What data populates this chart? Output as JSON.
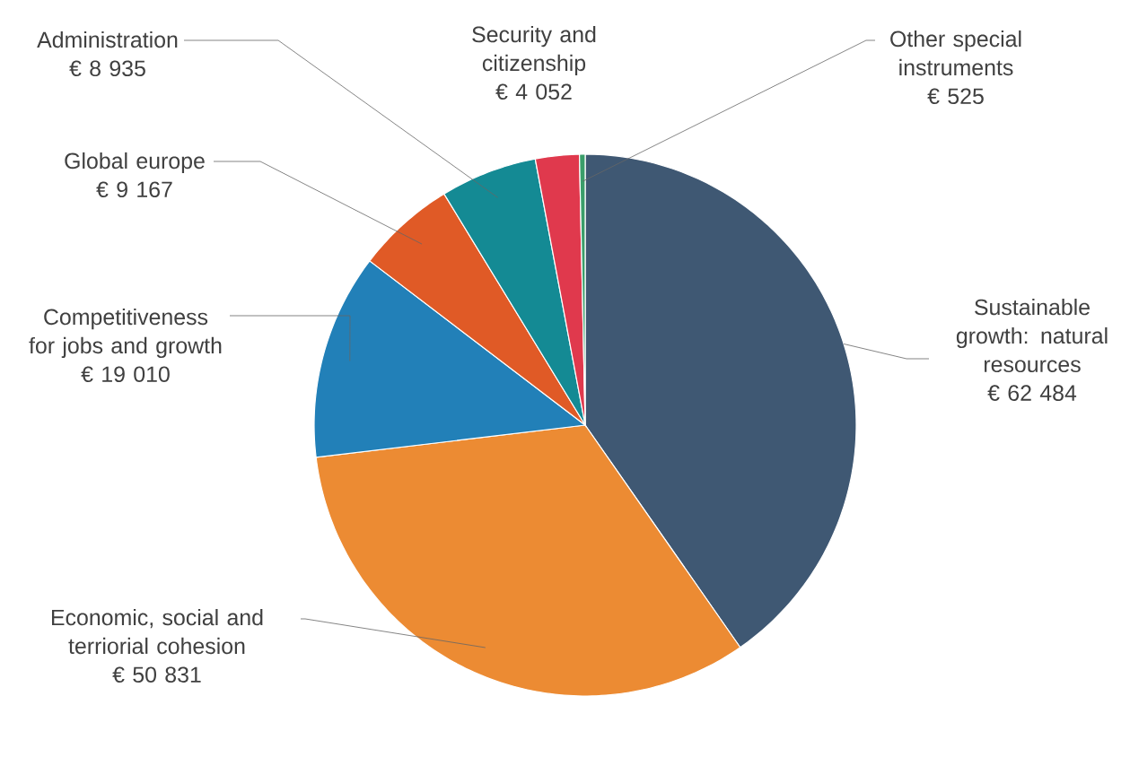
{
  "chart_data": {
    "type": "pie",
    "categories": [
      "Sustainable growth: natural resources",
      "Economic, social and terriorial cohesion",
      "Competitiveness for jobs and growth",
      "Global europe",
      "Administration",
      "Security and citizenship",
      "Other special instruments"
    ],
    "values": [
      62484,
      50831,
      19010,
      9167,
      8935,
      4052,
      525
    ],
    "value_labels": [
      "€ 62 484",
      "€ 50 831",
      "€ 19 010",
      "€ 9 167",
      "€ 8 935",
      "€ 4 052",
      "€ 525"
    ],
    "colors": [
      "#3f5873",
      "#ec8b33",
      "#2280b8",
      "#e05a26",
      "#148a94",
      "#e0394d",
      "#3a9e6a"
    ]
  }
}
